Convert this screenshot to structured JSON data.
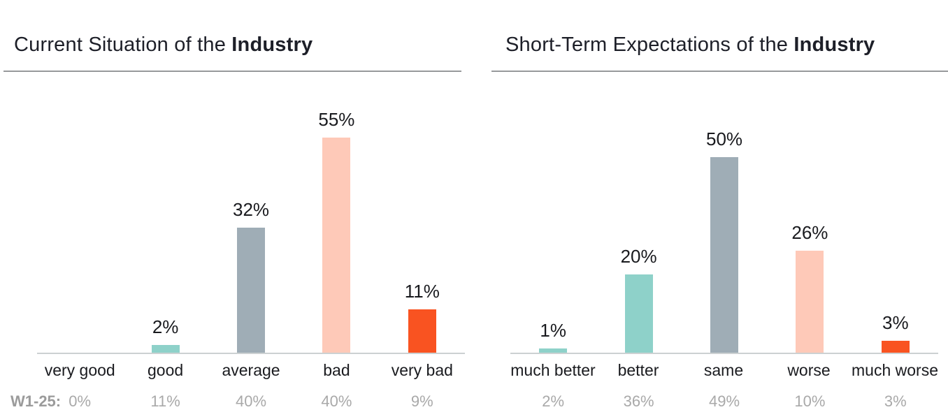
{
  "chart_data": [
    {
      "type": "bar",
      "title": "Current Situation of the Industry",
      "title_normal": "Current Situation of the ",
      "title_bold": "Industry",
      "categories": [
        "very good",
        "good",
        "average",
        "bad",
        "very bad"
      ],
      "values": [
        0,
        2,
        32,
        55,
        11
      ],
      "value_labels": [
        "",
        "2%",
        "32%",
        "55%",
        "11%"
      ],
      "bar_colors": [
        "#8ed1c9",
        "#8ed1c9",
        "#9fadb6",
        "#fec9b8",
        "#f95321"
      ],
      "ylim": [
        0,
        60
      ],
      "grid": false,
      "legend": "none",
      "footer_label": "W1-25:",
      "footer_values": [
        "0%",
        "11%",
        "40%",
        "40%",
        "9%"
      ]
    },
    {
      "type": "bar",
      "title": "Short-Term Expectations of the Industry",
      "title_normal": "Short-Term Expectations of the ",
      "title_bold": "Industry",
      "categories": [
        "much better",
        "better",
        "same",
        "worse",
        "much worse"
      ],
      "values": [
        1,
        20,
        50,
        26,
        3
      ],
      "value_labels": [
        "1%",
        "20%",
        "50%",
        "26%",
        "3%"
      ],
      "bar_colors": [
        "#8ed1c9",
        "#8ed1c9",
        "#9fadb6",
        "#fec9b8",
        "#f95321"
      ],
      "ylim": [
        0,
        60
      ],
      "grid": false,
      "legend": "none",
      "footer_label": "",
      "footer_values": [
        "2%",
        "36%",
        "49%",
        "10%",
        "3%"
      ]
    }
  ],
  "colors": {
    "bar_teal": "#8ed1c9",
    "bar_gray_blue": "#9fadb6",
    "bar_salmon": "#fec9b8",
    "bar_orange": "#f95321",
    "title_text": "#1d1f28",
    "label_text": "#191a1e",
    "muted_text": "#a9a9a9",
    "axis_line": "#ccd1d2",
    "title_rule": "#97999b"
  }
}
